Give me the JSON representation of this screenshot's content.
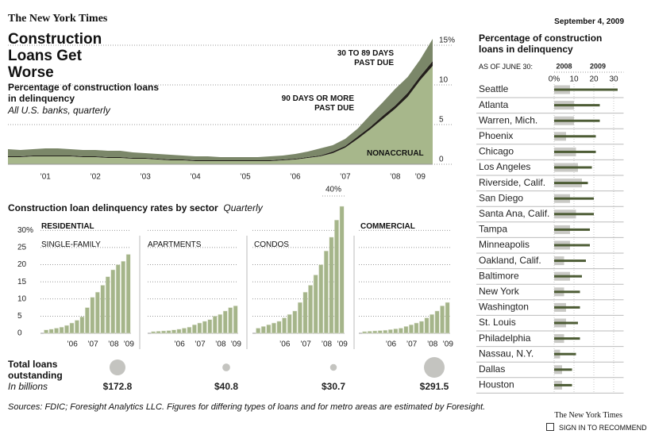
{
  "header": {
    "logo": "The New York Times",
    "date": "September 4, 2009",
    "title": "Construction Loans Get Worse"
  },
  "main_panel": {
    "title": "Percentage of construction loans in delinquency",
    "subtitle": "All U.S. banks, quarterly"
  },
  "sector_panel": {
    "title": "Construction loan delinquency rates by sector",
    "note": "Quarterly",
    "group_label": "RESIDENTIAL"
  },
  "totals": {
    "label": "Total loans outstanding",
    "unit_note": "In billions",
    "values": [
      172.8,
      40.8,
      30.7,
      291.5
    ],
    "value_labels": [
      "$172.8",
      "$40.8",
      "$30.7",
      "$291.5"
    ],
    "color": "#c4c4c0"
  },
  "source": "Sources: FDIC; Foresight Analytics LLC. Figures for differing types of loans and for metro areas are estimated by Foresight.",
  "footer": {
    "brand": "The New York Times",
    "recommend": "SIGN IN TO RECOMMEND"
  },
  "chart_data": [
    {
      "type": "area",
      "stacked": true,
      "categories": [
        null,
        null,
        null,
        "’01",
        null,
        null,
        null,
        "’02",
        null,
        null,
        null,
        "’03",
        null,
        null,
        null,
        "’04",
        null,
        null,
        null,
        "’05",
        null,
        null,
        null,
        "’06",
        null,
        null,
        null,
        "’07",
        null,
        null,
        null,
        "’08",
        null,
        "’09",
        null
      ],
      "series": [
        {
          "name": "NONACCRUAL",
          "color": "#a7b78b",
          "values": [
            0.9,
            0.9,
            1.0,
            1.0,
            1.0,
            1.0,
            0.9,
            0.9,
            0.8,
            0.8,
            0.7,
            0.7,
            0.6,
            0.5,
            0.5,
            0.4,
            0.4,
            0.4,
            0.4,
            0.4,
            0.4,
            0.4,
            0.5,
            0.6,
            0.8,
            1.0,
            1.4,
            2.1,
            3.2,
            4.4,
            5.7,
            7.0,
            8.5,
            10.6,
            12.4
          ]
        },
        {
          "name": "90 DAYS OR MORE PAST DUE",
          "color": "#231f1a",
          "values": [
            0.1,
            0.1,
            0.1,
            0.1,
            0.1,
            0.1,
            0.1,
            0.1,
            0.1,
            0.1,
            0.1,
            0.1,
            0.1,
            0.1,
            0.1,
            0.1,
            0.1,
            0.1,
            0.1,
            0.1,
            0.1,
            0.1,
            0.1,
            0.1,
            0.1,
            0.1,
            0.2,
            0.2,
            0.3,
            0.3,
            0.4,
            0.4,
            0.5,
            0.5,
            0.6
          ]
        },
        {
          "name": "30 TO 89 DAYS PAST DUE",
          "color": "#7b8769",
          "values": [
            0.9,
            0.8,
            0.8,
            0.9,
            0.9,
            0.8,
            0.8,
            0.8,
            0.8,
            0.8,
            0.7,
            0.6,
            0.6,
            0.6,
            0.5,
            0.5,
            0.5,
            0.4,
            0.4,
            0.4,
            0.4,
            0.5,
            0.5,
            0.6,
            0.7,
            0.9,
            0.8,
            0.9,
            1.0,
            1.5,
            1.7,
            2.1,
            2.0,
            2.1,
            2.8
          ]
        }
      ],
      "ylim": [
        0,
        16
      ],
      "yticks": [
        0,
        5,
        10,
        {
          "value": 15,
          "label": "15%"
        }
      ],
      "grid": true
    },
    {
      "type": "bar",
      "title": "SINGLE-FAMILY",
      "categories": [
        null,
        null,
        null,
        null,
        null,
        "’06",
        null,
        null,
        null,
        "’07",
        null,
        null,
        null,
        "’08",
        null,
        null,
        "’09"
      ],
      "values": [
        1,
        1.2,
        1.5,
        1.8,
        2.3,
        3,
        3.8,
        4.8,
        7.5,
        10.5,
        12,
        14,
        16.5,
        18.5,
        20,
        21,
        23
      ],
      "color": "#a5b58a",
      "ylim": [
        0,
        40
      ],
      "yticks": [
        0,
        5,
        10,
        15,
        20,
        25,
        {
          "value": 30,
          "label": "30%"
        }
      ],
      "grid": true
    },
    {
      "type": "bar",
      "title": "APARTMENTS",
      "categories": [
        null,
        null,
        null,
        null,
        null,
        "’06",
        null,
        null,
        null,
        "’07",
        null,
        null,
        null,
        "’08",
        null,
        null,
        "’09"
      ],
      "values": [
        0.5,
        0.6,
        0.7,
        0.8,
        1,
        1.2,
        1.5,
        1.8,
        2.5,
        3,
        3.5,
        4,
        5,
        5.5,
        6.5,
        7.5,
        8
      ],
      "color": "#a5b58a",
      "ylim": [
        0,
        40
      ]
    },
    {
      "type": "bar",
      "title": "CONDOS",
      "categories": [
        null,
        null,
        null,
        null,
        null,
        "’06",
        null,
        null,
        null,
        "’07",
        null,
        null,
        null,
        "’08",
        null,
        null,
        "’09"
      ],
      "values": [
        1.5,
        2,
        2.5,
        3,
        3.5,
        4.5,
        5.5,
        6.5,
        9,
        12,
        14,
        17,
        20,
        24,
        28,
        33,
        37
      ],
      "color": "#a5b58a",
      "ylim": [
        0,
        40
      ],
      "yticks": [
        {
          "value": 40,
          "label": "40%"
        }
      ]
    },
    {
      "type": "bar",
      "title": "COMMERCIAL",
      "categories": [
        null,
        null,
        null,
        null,
        null,
        "’06",
        null,
        null,
        null,
        "’07",
        null,
        null,
        null,
        "’08",
        null,
        null,
        "’09"
      ],
      "values": [
        0.5,
        0.6,
        0.7,
        0.8,
        0.9,
        1.1,
        1.3,
        1.5,
        2,
        2.5,
        3,
        3.5,
        4.5,
        5.5,
        6.5,
        8,
        9
      ],
      "color": "#a5b58a",
      "ylim": [
        0,
        40
      ]
    },
    {
      "type": "hbar",
      "title": "Percentage of construction loans in delinquency",
      "subtitle": "AS OF JUNE 30:",
      "categories": [
        "Seattle",
        "Atlanta",
        "Warren, Mich.",
        "Phoenix",
        "Chicago",
        "Los Angeles",
        "Riverside, Calif.",
        "San Diego",
        "Santa Ana, Calif.",
        "Tampa",
        "Minneapolis",
        "Oakland, Calif.",
        "Baltimore",
        "New York",
        "Washington",
        "St. Louis",
        "Philadelphia",
        "Nassau, N.Y.",
        "Dallas",
        "Houston"
      ],
      "series": [
        {
          "name": "2008",
          "color": "#c9c9c5",
          "values": [
            8,
            10,
            10,
            6,
            11,
            12,
            14,
            8,
            11,
            8,
            8,
            5,
            8,
            5,
            6,
            6,
            5,
            3,
            4,
            4
          ]
        },
        {
          "name": "2009",
          "color": "#4d5c35",
          "values": [
            32,
            23,
            23,
            21,
            21,
            19,
            17,
            20,
            20,
            18,
            18,
            16,
            14,
            13,
            13,
            12,
            13,
            11,
            9,
            9
          ]
        }
      ],
      "xlim": [
        0,
        35
      ],
      "xticks": [
        {
          "value": 0,
          "label": "0%"
        },
        10,
        20,
        30
      ],
      "grid": true
    }
  ]
}
